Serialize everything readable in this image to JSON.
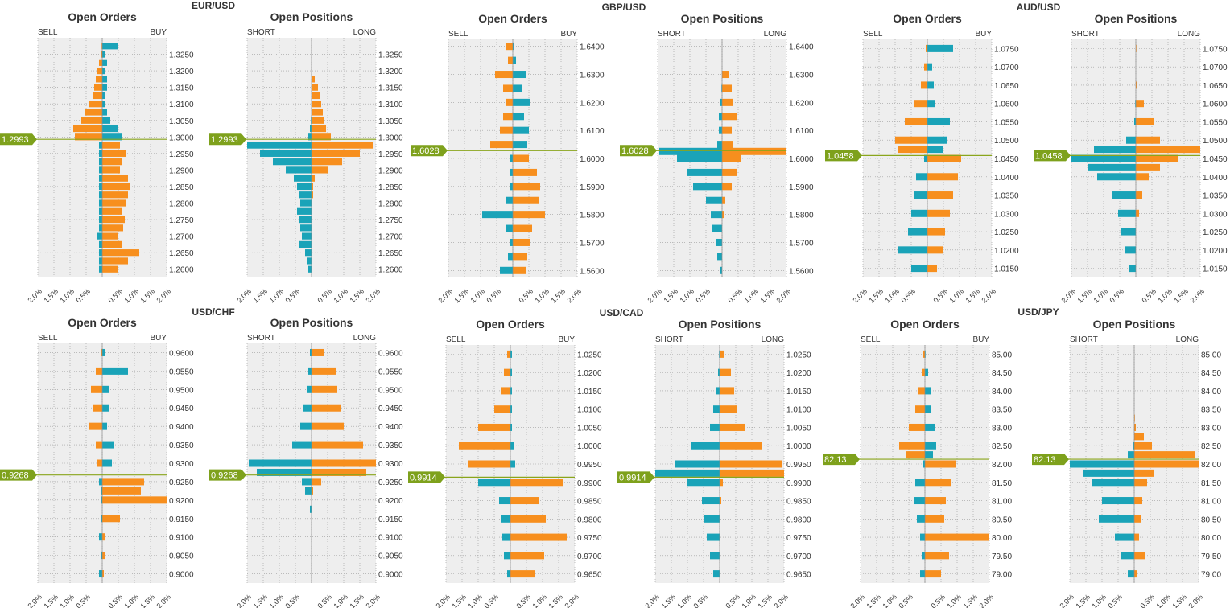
{
  "colors": {
    "orange": "#f78f1e",
    "teal": "#1aa3b8",
    "price_line": "#8aa51c",
    "badge": "#7ea11c",
    "plot_bg": "#eeeeee",
    "grid": "#9a9a9a"
  },
  "x_tick_labels": [
    "2.0%",
    "1.5%",
    "1.0%",
    "0.5%",
    "0.5%",
    "1.0%",
    "1.5%",
    "2.0%"
  ],
  "pairs": [
    {
      "name": "EUR/USD",
      "price": "1.2993",
      "price_value": 1.2993,
      "y_min": 1.2575,
      "y_max": 1.33,
      "y_ticks": [
        "1.3250",
        "1.3200",
        "1.3150",
        "1.3100",
        "1.3050",
        "1.3000",
        "1.2950",
        "1.2900",
        "1.2850",
        "1.2800",
        "1.2750",
        "1.2700",
        "1.2650",
        "1.2600"
      ],
      "orders": {
        "title": "Open Orders",
        "left_label": "SELL",
        "right_label": "BUY"
      },
      "positions": {
        "title": "Open Positions",
        "left_label": "SHORT",
        "right_label": "LONG"
      }
    },
    {
      "name": "GBP/USD",
      "price": "1.6028",
      "price_value": 1.6028,
      "y_min": 1.5575,
      "y_max": 1.6425,
      "y_ticks": [
        "1.6400",
        "1.6300",
        "1.6200",
        "1.6100",
        "1.6000",
        "1.5900",
        "1.5800",
        "1.5700",
        "1.5600"
      ],
      "orders": {
        "title": "Open Orders",
        "left_label": "SELL",
        "right_label": "BUY"
      },
      "positions": {
        "title": "Open Positions",
        "left_label": "SHORT",
        "right_label": "LONG"
      }
    },
    {
      "name": "AUD/USD",
      "price": "1.0458",
      "price_value": 1.0458,
      "y_min": 1.0125,
      "y_max": 1.0775,
      "y_ticks": [
        "1.0750",
        "1.0700",
        "1.0650",
        "1.0600",
        "1.0550",
        "1.0500",
        "1.0450",
        "1.0400",
        "1.0350",
        "1.0300",
        "1.0250",
        "1.0200",
        "1.0150"
      ],
      "orders": {
        "title": "Open Orders",
        "left_label": "SELL",
        "right_label": "BUY"
      },
      "positions": {
        "title": "Open Positions",
        "left_label": "SHORT",
        "right_label": "LONG"
      }
    },
    {
      "name": "USD/CHF",
      "price": "0.9268",
      "price_value": 0.9268,
      "y_min": 0.8975,
      "y_max": 0.9625,
      "y_ticks": [
        "0.9600",
        "0.9550",
        "0.9500",
        "0.9450",
        "0.9400",
        "0.9350",
        "0.9300",
        "0.9250",
        "0.9200",
        "0.9150",
        "0.9100",
        "0.9050",
        "0.9000"
      ],
      "orders": {
        "title": "Open Orders",
        "left_label": "SELL",
        "right_label": "BUY"
      },
      "positions": {
        "title": "Open Positions",
        "left_label": "SHORT",
        "right_label": "LONG"
      }
    },
    {
      "name": "USD/CAD",
      "price": "0.9914",
      "price_value": 0.9914,
      "y_min": 0.9625,
      "y_max": 1.0275,
      "y_ticks": [
        "1.0250",
        "1.0200",
        "1.0150",
        "1.0100",
        "1.0050",
        "1.0000",
        "0.9950",
        "0.9900",
        "0.9850",
        "0.9800",
        "0.9750",
        "0.9700",
        "0.9650"
      ],
      "orders": {
        "title": "Open Orders",
        "left_label": "SELL",
        "right_label": "BUY"
      },
      "positions": {
        "title": "Open Positions",
        "left_label": "SHORT",
        "right_label": "LONG"
      }
    },
    {
      "name": "USD/JPY",
      "price": "82.13",
      "price_value": 82.13,
      "y_min": 78.75,
      "y_max": 85.25,
      "y_ticks": [
        "85.00",
        "84.50",
        "84.00",
        "83.50",
        "83.00",
        "82.50",
        "82.00",
        "81.50",
        "81.00",
        "80.50",
        "80.00",
        "79.50",
        "79.00"
      ],
      "orders": {
        "title": "Open Orders",
        "left_label": "SELL",
        "right_label": "BUY"
      },
      "positions": {
        "title": "Open Positions",
        "left_label": "SHORT",
        "right_label": "LONG"
      }
    }
  ],
  "chart_data": [
    {
      "type": "bar",
      "orientation": "horizontal",
      "pair": "EUR/USD",
      "title": "Open Orders",
      "x_range": [
        -2.0,
        2.0
      ],
      "y_range": [
        1.2575,
        1.33
      ],
      "current_price": 1.2993,
      "levels": [
        1.3275,
        1.325,
        1.3225,
        1.32,
        1.3175,
        1.315,
        1.3125,
        1.31,
        1.3075,
        1.305,
        1.3025,
        1.3,
        1.2975,
        1.295,
        1.2925,
        1.29,
        1.2875,
        1.285,
        1.2825,
        1.28,
        1.2775,
        1.275,
        1.2725,
        1.27,
        1.2675,
        1.265,
        1.2625,
        1.26
      ],
      "series": [
        {
          "name": "SELL",
          "values": [
            0.02,
            0.05,
            0.1,
            0.15,
            0.2,
            0.25,
            0.3,
            0.4,
            0.55,
            0.65,
            0.9,
            0.85,
            0.1,
            0.1,
            0.1,
            0.1,
            0.1,
            0.1,
            0.1,
            0.1,
            0.1,
            0.1,
            0.1,
            0.15,
            0.1,
            0.1,
            0.1,
            0.1
          ]
        },
        {
          "name": "BUY",
          "values": [
            0.5,
            0.1,
            0.15,
            0.1,
            0.15,
            0.15,
            0.1,
            0.1,
            0.15,
            0.25,
            0.5,
            0.6,
            0.55,
            0.75,
            0.6,
            0.55,
            0.8,
            0.85,
            0.8,
            0.75,
            0.6,
            0.7,
            0.65,
            0.5,
            0.6,
            1.15,
            0.8,
            0.5
          ]
        }
      ]
    },
    {
      "type": "bar",
      "orientation": "horizontal",
      "pair": "EUR/USD",
      "title": "Open Positions",
      "x_range": [
        -2.0,
        2.0
      ],
      "y_range": [
        1.2575,
        1.33
      ],
      "current_price": 1.2993,
      "levels": [
        1.3175,
        1.315,
        1.3125,
        1.31,
        1.3075,
        1.305,
        1.3025,
        1.3,
        1.2975,
        1.295,
        1.2925,
        1.29,
        1.2875,
        1.285,
        1.2825,
        1.28,
        1.2775,
        1.275,
        1.2725,
        1.27,
        1.2675,
        1.265,
        1.2625,
        1.26
      ],
      "series": [
        {
          "name": "SHORT",
          "values": [
            0.0,
            0.0,
            0.0,
            0.0,
            0.0,
            0.02,
            0.05,
            0.1,
            2.0,
            1.6,
            1.2,
            0.8,
            0.55,
            0.45,
            0.4,
            0.35,
            0.45,
            0.4,
            0.35,
            0.3,
            0.4,
            0.2,
            0.15,
            0.1
          ]
        },
        {
          "name": "LONG",
          "values": [
            0.1,
            0.2,
            0.25,
            0.3,
            0.35,
            0.4,
            0.45,
            0.6,
            1.9,
            1.5,
            0.95,
            0.5,
            0.1,
            0.05,
            0.05,
            0.02,
            0.0,
            0.0,
            0.0,
            0.0,
            0.0,
            0.0,
            0.0,
            0.0
          ]
        }
      ]
    },
    {
      "type": "bar",
      "orientation": "horizontal",
      "pair": "GBP/USD",
      "title": "Open Orders",
      "x_range": [
        -2.0,
        2.0
      ],
      "y_range": [
        1.5575,
        1.6425
      ],
      "current_price": 1.6028,
      "levels": [
        1.64,
        1.635,
        1.63,
        1.625,
        1.62,
        1.615,
        1.61,
        1.605,
        1.6,
        1.595,
        1.59,
        1.585,
        1.58,
        1.575,
        1.57,
        1.565,
        1.56
      ],
      "series": [
        {
          "name": "SELL",
          "values": [
            0.2,
            0.15,
            0.55,
            0.3,
            0.2,
            0.3,
            0.4,
            0.7,
            0.1,
            0.1,
            0.1,
            0.2,
            0.95,
            0.2,
            0.1,
            0.15,
            0.4
          ]
        },
        {
          "name": "BUY",
          "values": [
            0.05,
            0.1,
            0.4,
            0.3,
            0.55,
            0.35,
            0.5,
            0.45,
            0.5,
            0.75,
            0.85,
            0.8,
            1.0,
            0.6,
            0.55,
            0.45,
            0.4
          ]
        }
      ]
    },
    {
      "type": "bar",
      "orientation": "horizontal",
      "pair": "GBP/USD",
      "title": "Open Positions",
      "x_range": [
        -2.0,
        2.0
      ],
      "y_range": [
        1.5575,
        1.6425
      ],
      "current_price": 1.6028,
      "levels": [
        1.63,
        1.625,
        1.62,
        1.615,
        1.61,
        1.605,
        1.6025,
        1.6,
        1.595,
        1.59,
        1.585,
        1.58,
        1.575,
        1.57,
        1.565,
        1.56
      ],
      "series": [
        {
          "name": "SHORT",
          "values": [
            0.0,
            0.02,
            0.05,
            0.1,
            0.1,
            0.15,
            1.95,
            1.4,
            1.1,
            0.9,
            0.5,
            0.35,
            0.3,
            0.2,
            0.15,
            0.05
          ]
        },
        {
          "name": "LONG",
          "values": [
            0.2,
            0.3,
            0.35,
            0.45,
            0.3,
            0.35,
            2.0,
            0.6,
            0.45,
            0.3,
            0.1,
            0.05,
            0.0,
            0.0,
            0.0,
            0.0
          ]
        }
      ]
    },
    {
      "type": "bar",
      "orientation": "horizontal",
      "pair": "AUD/USD",
      "title": "Open Orders",
      "x_range": [
        -2.0,
        2.0
      ],
      "y_range": [
        1.0125,
        1.0775
      ],
      "current_price": 1.0458,
      "levels": [
        1.075,
        1.07,
        1.065,
        1.06,
        1.055,
        1.05,
        1.0475,
        1.045,
        1.04,
        1.035,
        1.03,
        1.025,
        1.02,
        1.015
      ],
      "series": [
        {
          "name": "SELL",
          "values": [
            0.05,
            0.1,
            0.2,
            0.4,
            0.7,
            1.0,
            0.9,
            0.1,
            0.35,
            0.4,
            0.5,
            0.6,
            0.9,
            0.5
          ]
        },
        {
          "name": "BUY",
          "values": [
            0.8,
            0.15,
            0.2,
            0.25,
            0.7,
            0.6,
            0.5,
            1.05,
            0.95,
            0.8,
            0.7,
            0.55,
            0.5,
            0.3
          ]
        }
      ]
    },
    {
      "type": "bar",
      "orientation": "horizontal",
      "pair": "AUD/USD",
      "title": "Open Positions",
      "x_range": [
        -2.0,
        2.0
      ],
      "y_range": [
        1.0125,
        1.0775
      ],
      "current_price": 1.0458,
      "levels": [
        1.075,
        1.065,
        1.06,
        1.055,
        1.05,
        1.0475,
        1.045,
        1.0425,
        1.04,
        1.035,
        1.03,
        1.025,
        1.02,
        1.015
      ],
      "series": [
        {
          "name": "SHORT",
          "values": [
            0.0,
            0.0,
            0.02,
            0.05,
            0.3,
            1.3,
            2.0,
            1.5,
            1.2,
            0.75,
            0.55,
            0.45,
            0.35,
            0.2
          ]
        },
        {
          "name": "LONG",
          "values": [
            0.02,
            0.05,
            0.25,
            0.55,
            0.75,
            2.0,
            1.3,
            0.75,
            0.4,
            0.2,
            0.1,
            0.0,
            0.0,
            0.0
          ]
        }
      ]
    },
    {
      "type": "bar",
      "orientation": "horizontal",
      "pair": "USD/CHF",
      "title": "Open Orders",
      "x_range": [
        -2.0,
        2.0
      ],
      "y_range": [
        0.8975,
        0.9625
      ],
      "current_price": 0.9268,
      "levels": [
        0.96,
        0.955,
        0.95,
        0.945,
        0.94,
        0.935,
        0.93,
        0.925,
        0.9225,
        0.92,
        0.915,
        0.91,
        0.905,
        0.9
      ],
      "series": [
        {
          "name": "SELL",
          "values": [
            0.05,
            0.2,
            0.35,
            0.3,
            0.4,
            0.2,
            0.15,
            0.1,
            0.05,
            0.05,
            0.05,
            0.1,
            0.05,
            0.1
          ]
        },
        {
          "name": "BUY",
          "values": [
            0.1,
            0.8,
            0.2,
            0.2,
            0.15,
            0.35,
            0.3,
            1.3,
            1.2,
            2.0,
            0.55,
            0.1,
            0.1,
            0.05
          ]
        }
      ]
    },
    {
      "type": "bar",
      "orientation": "horizontal",
      "pair": "USD/CHF",
      "title": "Open Positions",
      "x_range": [
        -2.0,
        2.0
      ],
      "y_range": [
        0.8975,
        0.9625
      ],
      "current_price": 0.9268,
      "levels": [
        0.96,
        0.955,
        0.95,
        0.945,
        0.94,
        0.935,
        0.93,
        0.9275,
        0.925,
        0.9225,
        0.9175
      ],
      "series": [
        {
          "name": "SHORT",
          "values": [
            0.05,
            0.1,
            0.15,
            0.25,
            0.35,
            0.6,
            1.95,
            1.7,
            0.3,
            0.2,
            0.05
          ]
        },
        {
          "name": "LONG",
          "values": [
            0.4,
            0.75,
            0.8,
            0.9,
            1.0,
            1.6,
            2.0,
            1.7,
            0.3,
            0.05,
            0.0
          ]
        }
      ]
    },
    {
      "type": "bar",
      "orientation": "horizontal",
      "pair": "USD/CAD",
      "title": "Open Orders",
      "x_range": [
        -2.0,
        2.0
      ],
      "y_range": [
        0.9625,
        1.0275
      ],
      "current_price": 0.9914,
      "levels": [
        1.025,
        1.02,
        1.015,
        1.01,
        1.005,
        1.0,
        0.995,
        0.99,
        0.985,
        0.98,
        0.975,
        0.97,
        0.965
      ],
      "series": [
        {
          "name": "SELL",
          "values": [
            0.1,
            0.2,
            0.3,
            0.5,
            1.0,
            1.6,
            1.3,
            1.0,
            0.35,
            0.3,
            0.25,
            0.2,
            0.1
          ]
        },
        {
          "name": "BUY",
          "values": [
            0.05,
            0.05,
            0.05,
            0.05,
            0.05,
            0.1,
            0.15,
            1.65,
            0.9,
            1.1,
            1.75,
            1.05,
            0.75
          ]
        }
      ]
    },
    {
      "type": "bar",
      "orientation": "horizontal",
      "pair": "USD/CAD",
      "title": "Open Positions",
      "x_range": [
        -2.0,
        2.0
      ],
      "y_range": [
        0.9625,
        1.0275
      ],
      "current_price": 0.9914,
      "levels": [
        1.025,
        1.02,
        1.015,
        1.01,
        1.005,
        1.0,
        0.995,
        0.9925,
        0.99,
        0.985,
        0.98,
        0.975,
        0.97,
        0.965
      ],
      "series": [
        {
          "name": "SHORT",
          "values": [
            0.02,
            0.05,
            0.1,
            0.2,
            0.3,
            0.9,
            1.4,
            2.0,
            1.0,
            0.55,
            0.5,
            0.4,
            0.3,
            0.2
          ]
        },
        {
          "name": "LONG",
          "values": [
            0.15,
            0.35,
            0.45,
            0.55,
            0.8,
            1.3,
            1.95,
            2.0,
            0.1,
            0.05,
            0.0,
            0.0,
            0.0,
            0.0
          ]
        }
      ]
    },
    {
      "type": "bar",
      "orientation": "horizontal",
      "pair": "USD/JPY",
      "title": "Open Orders",
      "x_range": [
        -2.0,
        2.0
      ],
      "y_range": [
        78.75,
        85.25
      ],
      "current_price": 82.13,
      "levels": [
        85.0,
        84.5,
        84.0,
        83.5,
        83.0,
        82.5,
        82.25,
        82.0,
        81.5,
        81.0,
        80.5,
        80.0,
        79.5,
        79.0
      ],
      "series": [
        {
          "name": "SELL",
          "values": [
            0.05,
            0.1,
            0.2,
            0.3,
            0.5,
            0.8,
            0.6,
            0.05,
            0.3,
            0.35,
            0.25,
            0.15,
            0.1,
            0.15
          ]
        },
        {
          "name": "BUY",
          "values": [
            0.02,
            0.1,
            0.2,
            0.2,
            0.3,
            0.35,
            0.25,
            0.95,
            0.8,
            0.65,
            0.6,
            2.0,
            0.75,
            0.5
          ]
        }
      ]
    },
    {
      "type": "bar",
      "orientation": "horizontal",
      "pair": "USD/JPY",
      "title": "Open Positions",
      "x_range": [
        -2.0,
        2.0
      ],
      "y_range": [
        78.75,
        85.25
      ],
      "current_price": 82.13,
      "levels": [
        83.25,
        83.0,
        82.75,
        82.5,
        82.25,
        82.0,
        81.75,
        81.5,
        81.0,
        80.5,
        80.0,
        79.5,
        79.0
      ],
      "series": [
        {
          "name": "SHORT",
          "values": [
            0.0,
            0.0,
            0.0,
            0.05,
            0.2,
            2.0,
            1.6,
            1.3,
            1.0,
            1.1,
            0.6,
            0.4,
            0.2
          ]
        },
        {
          "name": "LONG",
          "values": [
            0.02,
            0.05,
            0.3,
            0.55,
            1.9,
            2.0,
            0.6,
            0.4,
            0.25,
            0.2,
            0.15,
            0.35,
            0.1
          ]
        }
      ]
    }
  ]
}
